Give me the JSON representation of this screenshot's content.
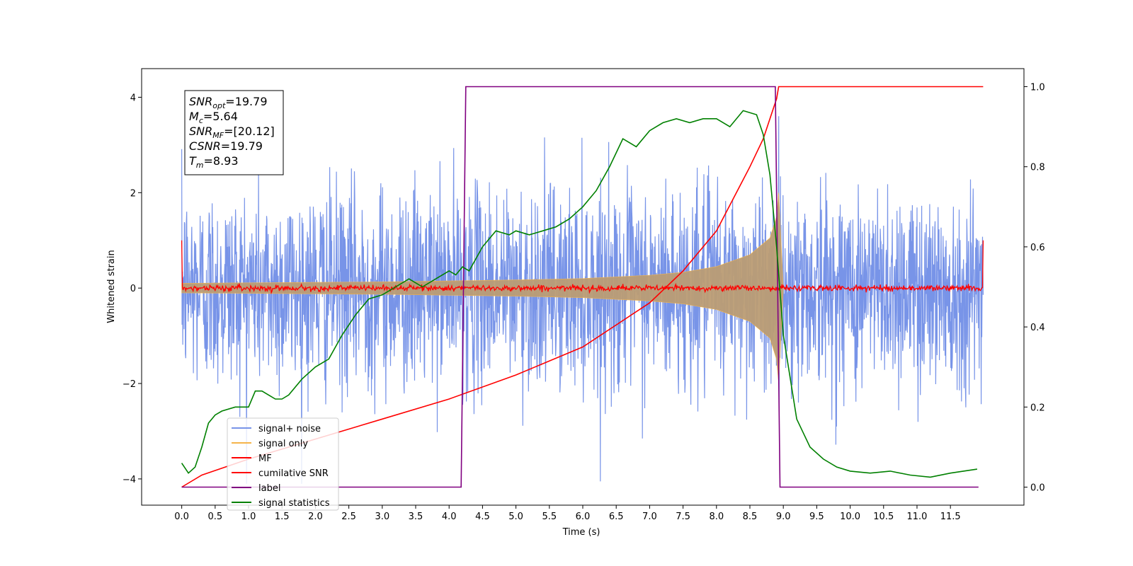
{
  "chart_data": {
    "type": "line",
    "title": "",
    "xlabel": "Time (s)",
    "ylabel": "Whitened strain",
    "y2label": "",
    "xlim": [
      -0.6,
      12.6
    ],
    "ylim": [
      -4.55,
      4.6
    ],
    "y2lim": [
      -0.045,
      1.045
    ],
    "xticks": [
      "0.0",
      "0.5",
      "1.0",
      "1.5",
      "2.0",
      "2.5",
      "3.0",
      "3.5",
      "4.0",
      "4.5",
      "5.0",
      "5.5",
      "6.0",
      "6.5",
      "7.0",
      "7.5",
      "8.0",
      "8.5",
      "9.0",
      "9.5",
      "10.0",
      "10.5",
      "11.0",
      "11.5"
    ],
    "yticks": [
      "4",
      "2",
      "0",
      "−2",
      "−4"
    ],
    "y2ticks": [
      "1.0",
      "0.8",
      "0.6",
      "0.4",
      "0.2",
      "0.0"
    ],
    "grid": false,
    "legend_position": "lower-left",
    "stats_box": [
      {
        "main": "SNR",
        "sub": "opt",
        "value": "=19.79"
      },
      {
        "main": "M",
        "sub": "c",
        "value": "=5.64"
      },
      {
        "main": "SNR",
        "sub": "MF",
        "value": "=[20.12]"
      },
      {
        "main": "CSNR",
        "sub": "",
        "value": "=19.79"
      },
      {
        "main": "T",
        "sub": "m",
        "value": "=8.93"
      }
    ],
    "series": [
      {
        "name": "signal+ noise",
        "axis": "left",
        "color": "#7894e8",
        "noise_std": 1.05,
        "x_start": 0.0,
        "x_end": 11.99,
        "peak_abs": 4.1
      },
      {
        "name": "signal only",
        "axis": "left",
        "color": "#f5b44a",
        "fill": "#bb9c74",
        "envelope_x": [
          0.0,
          1.0,
          2.0,
          3.0,
          4.0,
          5.0,
          6.0,
          7.0,
          7.5,
          8.0,
          8.5,
          8.8,
          8.9,
          8.93,
          9.0
        ],
        "envelope_y": [
          0.1,
          0.11,
          0.12,
          0.13,
          0.15,
          0.17,
          0.2,
          0.27,
          0.33,
          0.45,
          0.7,
          1.05,
          1.5,
          2.0,
          0.0
        ]
      },
      {
        "name": "MF",
        "axis": "left",
        "color": "#ff0000",
        "noise_std": 0.03,
        "x_start": 0.0,
        "x_end": 11.99,
        "edge_value": 1.0
      },
      {
        "name": "cumilative SNR",
        "axis": "right",
        "color": "#ff0000",
        "x": [
          0.0,
          0.3,
          1.0,
          2.0,
          3.0,
          4.0,
          5.0,
          6.0,
          7.0,
          7.5,
          8.0,
          8.5,
          8.7,
          8.8,
          8.9,
          8.93,
          9.0,
          11.99
        ],
        "y": [
          0.0,
          0.03,
          0.07,
          0.12,
          0.17,
          0.22,
          0.28,
          0.35,
          0.46,
          0.54,
          0.64,
          0.8,
          0.87,
          0.92,
          0.97,
          1.0,
          1.0,
          1.0
        ]
      },
      {
        "name": "label",
        "axis": "right",
        "color": "#800080",
        "x": [
          0.0,
          4.18,
          4.25,
          8.88,
          8.95,
          11.92
        ],
        "y": [
          0.0,
          0.0,
          1.0,
          1.0,
          0.0,
          0.0
        ]
      },
      {
        "name": "signal statistics",
        "axis": "right",
        "color": "#008000",
        "x": [
          0.0,
          0.1,
          0.2,
          0.3,
          0.4,
          0.5,
          0.6,
          0.8,
          1.0,
          1.1,
          1.2,
          1.4,
          1.5,
          1.6,
          1.8,
          2.0,
          2.2,
          2.4,
          2.6,
          2.8,
          3.0,
          3.2,
          3.4,
          3.6,
          3.8,
          4.0,
          4.1,
          4.2,
          4.3,
          4.5,
          4.7,
          4.9,
          5.0,
          5.2,
          5.4,
          5.6,
          5.8,
          6.0,
          6.2,
          6.4,
          6.6,
          6.8,
          7.0,
          7.2,
          7.4,
          7.6,
          7.8,
          8.0,
          8.2,
          8.4,
          8.6,
          8.7,
          8.8,
          8.9,
          9.0,
          9.2,
          9.4,
          9.6,
          9.8,
          10.0,
          10.3,
          10.6,
          10.9,
          11.2,
          11.5,
          11.9
        ],
        "y": [
          0.06,
          0.035,
          0.05,
          0.1,
          0.16,
          0.18,
          0.19,
          0.2,
          0.2,
          0.24,
          0.24,
          0.22,
          0.22,
          0.23,
          0.27,
          0.3,
          0.32,
          0.38,
          0.43,
          0.47,
          0.48,
          0.5,
          0.52,
          0.5,
          0.52,
          0.54,
          0.53,
          0.55,
          0.54,
          0.6,
          0.64,
          0.63,
          0.64,
          0.63,
          0.64,
          0.65,
          0.67,
          0.7,
          0.74,
          0.8,
          0.87,
          0.85,
          0.89,
          0.91,
          0.92,
          0.91,
          0.92,
          0.92,
          0.9,
          0.94,
          0.93,
          0.88,
          0.78,
          0.6,
          0.38,
          0.17,
          0.1,
          0.07,
          0.05,
          0.04,
          0.035,
          0.04,
          0.03,
          0.025,
          0.035,
          0.045
        ]
      }
    ]
  }
}
